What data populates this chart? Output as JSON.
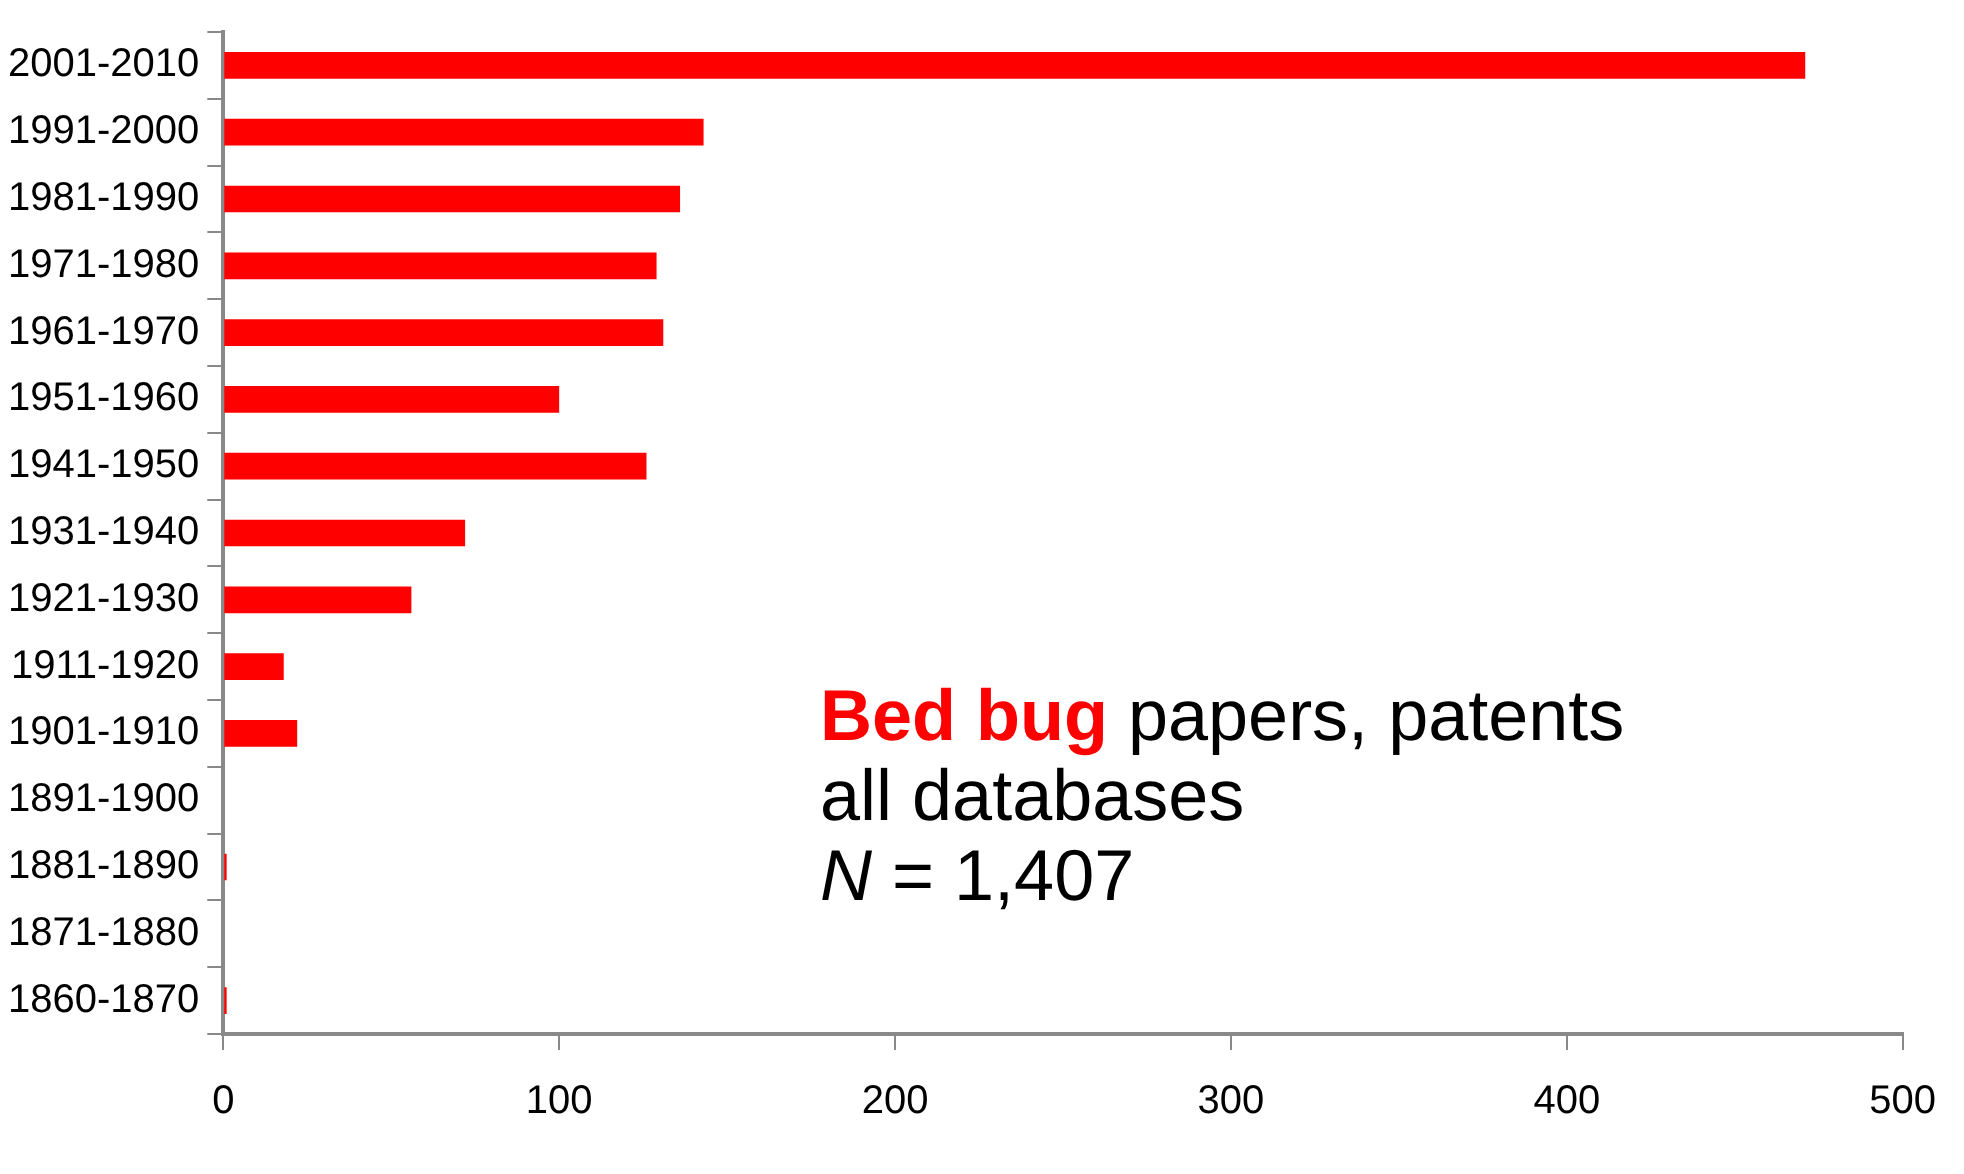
{
  "chart_data": {
    "type": "bar",
    "orientation": "horizontal",
    "categories": [
      "2001-2010",
      "1991-2000",
      "1981-1990",
      "1971-1980",
      "1961-1970",
      "1951-1960",
      "1941-1950",
      "1931-1940",
      "1921-1930",
      "1911-1920",
      "1901-1910",
      "1891-1900",
      "1881-1890",
      "1871-1880",
      "1860-1870"
    ],
    "values": [
      471,
      143,
      136,
      129,
      131,
      100,
      126,
      72,
      56,
      18,
      22,
      0,
      1,
      0,
      1
    ],
    "color": "#ff0000",
    "xlim": [
      0,
      500
    ],
    "xticks": [
      0,
      100,
      200,
      300,
      400,
      500
    ],
    "grid": false,
    "legend": false,
    "annotations": [
      "Bed bug",
      "papers, patents",
      "all databases",
      "N = 1,407"
    ]
  }
}
